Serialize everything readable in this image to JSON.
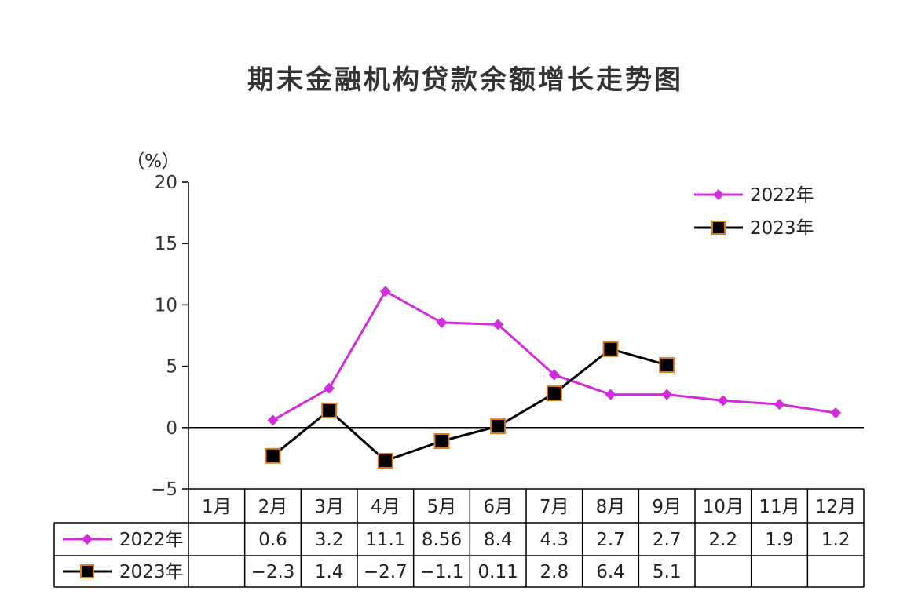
{
  "chart_data": {
    "type": "line",
    "title": "期末金融机构贷款余额增长走势图",
    "ylabel": "（%）",
    "ylim": [
      -5,
      20
    ],
    "yticks": [
      "20",
      "15",
      "10",
      "5",
      "0",
      "−5"
    ],
    "ytick_values": [
      20,
      15,
      10,
      5,
      0,
      -5
    ],
    "categories": [
      "1月",
      "2月",
      "3月",
      "4月",
      "5月",
      "6月",
      "7月",
      "8月",
      "9月",
      "10月",
      "11月",
      "12月"
    ],
    "legend_position": "top-right",
    "grid": false,
    "series": [
      {
        "name": "2022年",
        "color": "#d22ddb",
        "marker": "diamond",
        "values": [
          null,
          0.6,
          3.2,
          11.1,
          8.56,
          8.4,
          4.3,
          2.7,
          2.7,
          2.2,
          1.9,
          1.2
        ],
        "labels": [
          "",
          "0.6",
          "3.2",
          "11.1",
          "8.56",
          "8.4",
          "4.3",
          "2.7",
          "2.7",
          "2.2",
          "1.9",
          "1.2"
        ]
      },
      {
        "name": "2023年",
        "color": "#000000",
        "marker_edge": "#e07b1a",
        "marker": "square",
        "values": [
          null,
          -2.3,
          1.4,
          -2.7,
          -1.1,
          0.11,
          2.8,
          6.4,
          5.1,
          null,
          null,
          null
        ],
        "labels": [
          "",
          "−2.3",
          "1.4",
          "−2.7",
          "−1.1",
          "0.11",
          "2.8",
          "6.4",
          "5.1",
          "",
          "",
          ""
        ]
      }
    ]
  }
}
